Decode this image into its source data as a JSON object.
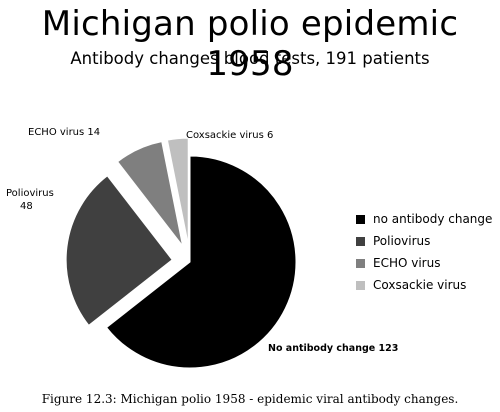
{
  "colors": {
    "no_antibody_change": "#000000",
    "poliovirus": "#404040",
    "echo_virus": "#7f7f7f",
    "coxsackie_virus": "#bfbfbf"
  },
  "chart_data": {
    "type": "pie",
    "title": "Michigan polio epidemic 1958",
    "subtitle": "Antibody changes blood tests, 191 patients",
    "categories": [
      "no antibody change",
      "Poliovirus",
      "ECHO virus",
      "Coxsackie virus"
    ],
    "values": [
      123,
      48,
      14,
      6
    ],
    "slice_labels": [
      "No antibody change 123",
      "Poliovirus 48",
      "ECHO virus 14",
      "Coxsackie virus 6"
    ],
    "exploded": true,
    "legend_position": "right",
    "caption": "Figure 12.3: Michigan polio 1958 - epidemic viral antibody changes."
  }
}
